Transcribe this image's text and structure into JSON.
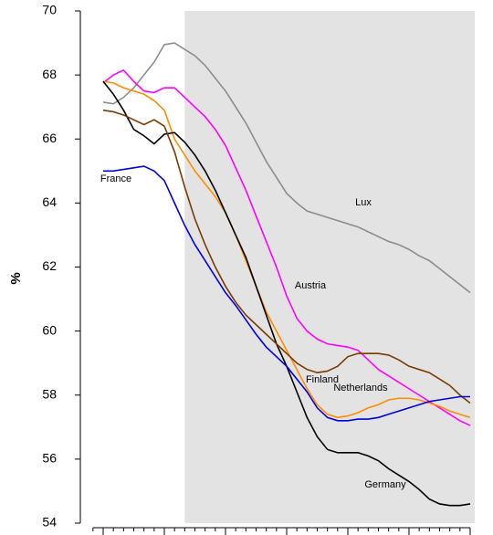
{
  "chart_data": {
    "type": "line",
    "y_label": "%",
    "x": [
      0,
      1,
      2,
      3,
      4,
      5,
      6,
      7,
      8,
      9,
      10,
      11,
      12,
      13,
      14,
      15,
      16,
      17,
      18,
      19,
      20,
      21,
      22,
      23,
      24,
      25,
      26,
      27,
      28,
      29,
      30,
      31,
      32,
      33,
      34,
      35,
      36
    ],
    "xlim": [
      -2.24,
      36.45
    ],
    "xticks": [
      -1,
      0,
      1,
      2,
      3,
      4,
      5,
      6,
      7,
      8,
      9,
      10,
      11,
      12,
      13,
      14,
      15,
      16,
      17,
      18,
      19,
      20,
      21,
      22,
      23,
      24,
      25,
      26,
      27,
      28,
      29,
      30,
      31,
      32,
      33,
      34,
      35,
      36
    ],
    "shade_x": [
      8,
      36.45
    ],
    "shade_color": "#e3e3e3",
    "ylim": [
      54,
      70
    ],
    "yticks": [
      54,
      56,
      58,
      60,
      62,
      64,
      66,
      68,
      70
    ],
    "series": [
      {
        "name": "Lux",
        "color": "#8c8c8c",
        "values": [
          67.15,
          67.1,
          67.3,
          67.6,
          68.0,
          68.4,
          68.95,
          69.0,
          68.8,
          68.6,
          68.3,
          67.9,
          67.5,
          67.0,
          66.5,
          65.9,
          65.3,
          64.8,
          64.3,
          64.0,
          63.75,
          63.65,
          63.55,
          63.45,
          63.35,
          63.25,
          63.1,
          62.95,
          62.8,
          62.7,
          62.55,
          62.35,
          62.2,
          61.95,
          61.7,
          61.45,
          61.2
        ]
      },
      {
        "name": "Austria",
        "color": "#ff00ff",
        "values": [
          67.75,
          68.0,
          68.15,
          67.8,
          67.5,
          67.45,
          67.6,
          67.6,
          67.3,
          67.0,
          66.7,
          66.3,
          65.8,
          65.1,
          64.4,
          63.6,
          62.8,
          62.0,
          61.1,
          60.4,
          60.0,
          59.75,
          59.6,
          59.55,
          59.5,
          59.4,
          59.1,
          58.8,
          58.6,
          58.4,
          58.2,
          58.0,
          57.8,
          57.6,
          57.4,
          57.2,
          57.05
        ]
      },
      {
        "name": "Netherlands",
        "color": "#ff8c00",
        "values": [
          67.8,
          67.75,
          67.6,
          67.5,
          67.4,
          67.2,
          66.9,
          66.0,
          65.5,
          65.0,
          64.6,
          64.2,
          63.7,
          63.0,
          62.2,
          61.4,
          60.6,
          60.0,
          59.4,
          58.8,
          58.2,
          57.7,
          57.4,
          57.3,
          57.35,
          57.45,
          57.6,
          57.7,
          57.85,
          57.9,
          57.9,
          57.85,
          57.75,
          57.65,
          57.5,
          57.4,
          57.3
        ]
      },
      {
        "name": "Germany",
        "color": "#000000",
        "values": [
          67.8,
          67.4,
          66.9,
          66.3,
          66.1,
          65.85,
          66.15,
          66.2,
          65.9,
          65.5,
          65.0,
          64.4,
          63.7,
          63.0,
          62.3,
          61.4,
          60.5,
          59.6,
          58.9,
          58.1,
          57.3,
          56.7,
          56.3,
          56.2,
          56.2,
          56.2,
          56.1,
          55.95,
          55.7,
          55.5,
          55.3,
          55.05,
          54.75,
          54.6,
          54.55,
          54.55,
          54.6
        ]
      },
      {
        "name": "Finland",
        "color": "#7a3b00",
        "values": [
          66.9,
          66.85,
          66.75,
          66.6,
          66.45,
          66.6,
          66.4,
          65.6,
          64.5,
          63.5,
          62.7,
          62.0,
          61.4,
          60.9,
          60.5,
          60.2,
          59.9,
          59.6,
          59.3,
          59.0,
          58.8,
          58.7,
          58.75,
          58.9,
          59.2,
          59.3,
          59.3,
          59.3,
          59.25,
          59.1,
          58.9,
          58.8,
          58.7,
          58.5,
          58.3,
          58.0,
          57.75
        ]
      },
      {
        "name": "France",
        "color": "#0000dd",
        "values": [
          65.0,
          65.0,
          65.05,
          65.1,
          65.15,
          65.0,
          64.7,
          64.0,
          63.3,
          62.7,
          62.2,
          61.7,
          61.2,
          60.8,
          60.35,
          59.9,
          59.5,
          59.2,
          58.9,
          58.5,
          58.1,
          57.6,
          57.3,
          57.2,
          57.2,
          57.25,
          57.25,
          57.3,
          57.4,
          57.5,
          57.6,
          57.7,
          57.8,
          57.85,
          57.9,
          57.95,
          57.95
        ]
      }
    ]
  }
}
